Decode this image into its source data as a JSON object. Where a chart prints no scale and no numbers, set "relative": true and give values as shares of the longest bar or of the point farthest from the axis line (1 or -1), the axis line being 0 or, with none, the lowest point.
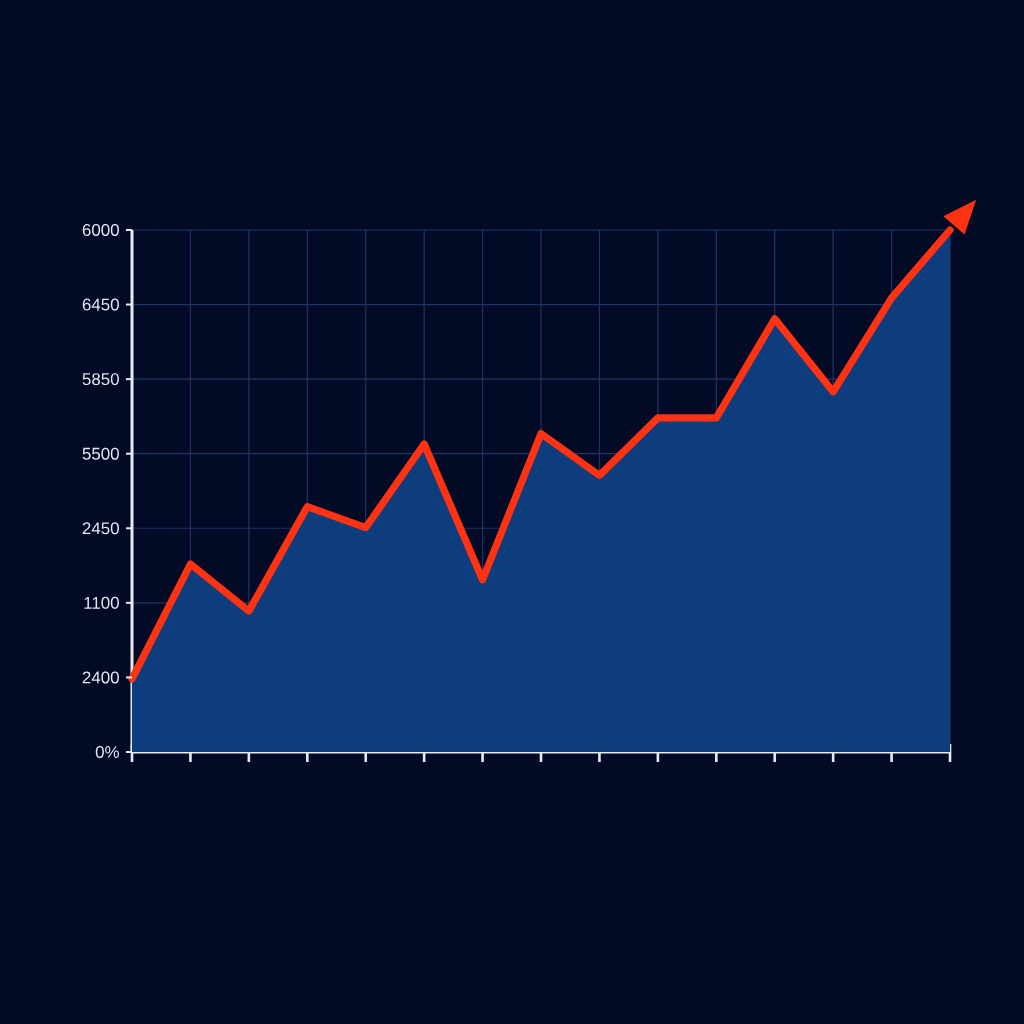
{
  "chart_data": {
    "type": "area",
    "relative": true,
    "categories": [
      null,
      null,
      null,
      null,
      null,
      null,
      null,
      null,
      null,
      null,
      null,
      null,
      null,
      null,
      null
    ],
    "series": [
      {
        "color": "#0e3d7e",
        "values": [
          0.14,
          0.36,
          0.27,
          0.47,
          0.43,
          0.59,
          0.33,
          0.61,
          0.53,
          0.64,
          0.64,
          0.83,
          0.69,
          0.87,
          1.0
        ]
      },
      {
        "type": "line",
        "color": "#ff3312",
        "values": [
          0.14,
          0.36,
          0.27,
          0.47,
          0.43,
          0.59,
          0.33,
          0.61,
          0.53,
          0.64,
          0.64,
          0.83,
          0.69,
          0.87,
          1.0
        ]
      }
    ],
    "annotations": [
      "6000",
      "6450",
      "5850",
      "5500",
      "2450",
      "1100",
      "2400",
      "0%"
    ],
    "grid": true
  }
}
